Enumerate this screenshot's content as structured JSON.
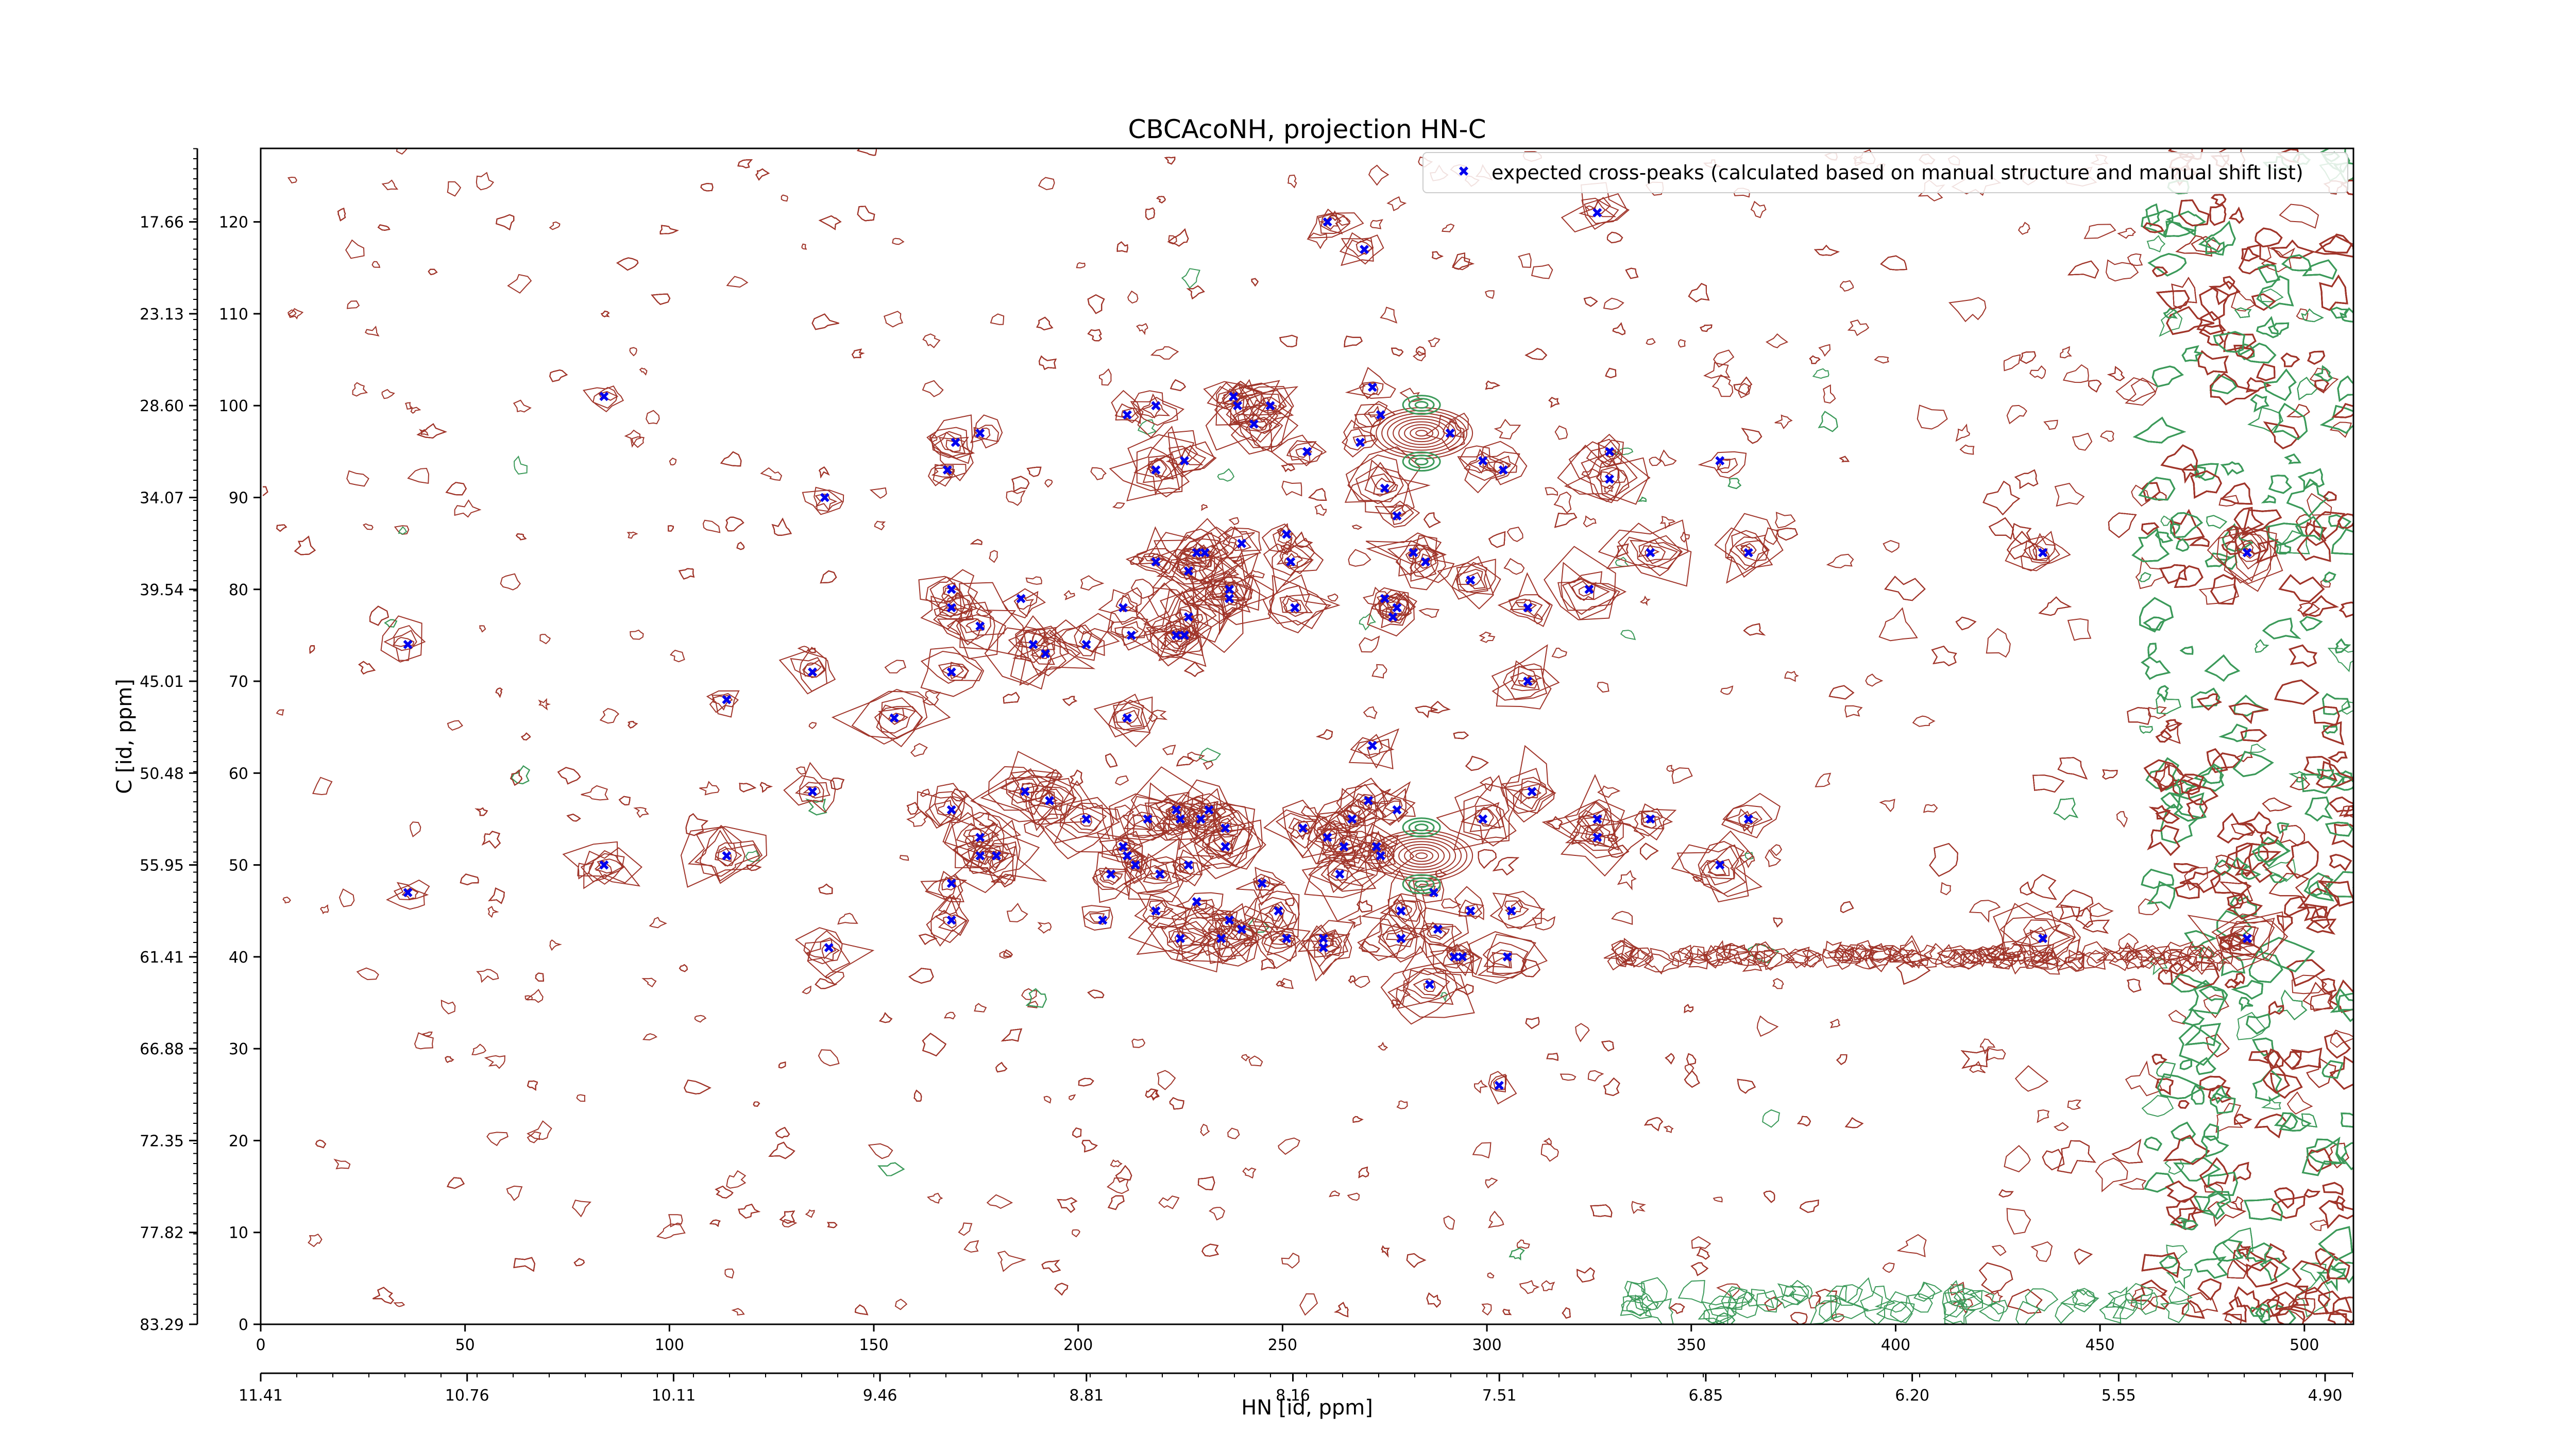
{
  "chart_data": {
    "type": "scatter",
    "title": "CBCAcoNH, projection HN-C",
    "xlabel": "HN [id, ppm]",
    "ylabel": "C [id, ppm]",
    "x_index_range": [
      0,
      512
    ],
    "y_index_range": [
      0,
      128
    ],
    "x_index_ticks": [
      "0",
      "50",
      "100",
      "150",
      "200",
      "250",
      "300",
      "350",
      "400",
      "450",
      "500"
    ],
    "x_ppm_ticks": [
      "11.41",
      "10.76",
      "10.11",
      "9.46",
      "8.81",
      "8.16",
      "7.51",
      "6.85",
      "6.20",
      "5.55",
      "4.90"
    ],
    "y_index_ticks": [
      "0",
      "10",
      "20",
      "30",
      "40",
      "50",
      "60",
      "70",
      "80",
      "90",
      "100",
      "110",
      "120"
    ],
    "y_ppm_ticks": [
      "83.29",
      "77.82",
      "72.35",
      "66.88",
      "61.41",
      "55.95",
      "50.48",
      "45.01",
      "39.54",
      "34.07",
      "28.60",
      "23.13",
      "17.66"
    ],
    "legend": {
      "placement": "top-right",
      "label": "expected cross-peaks (calculated based on manual structure and manual shift list)"
    },
    "colors": {
      "marker": "#0000ee",
      "contour_positive": "#a0352a",
      "contour_negative": "#3c9a5a"
    },
    "series": [
      {
        "name": "expected cross-peaks (calculated based on manual structure and manual shift list)",
        "points": [
          [
            36,
            74
          ],
          [
            36,
            47
          ],
          [
            84,
            101
          ],
          [
            84,
            50
          ],
          [
            114,
            68
          ],
          [
            114,
            51
          ],
          [
            138,
            90
          ],
          [
            135,
            71
          ],
          [
            135,
            58
          ],
          [
            139,
            41
          ],
          [
            155,
            66
          ],
          [
            168,
            93
          ],
          [
            170,
            96
          ],
          [
            176,
            97
          ],
          [
            169,
            80
          ],
          [
            169,
            78
          ],
          [
            169,
            71
          ],
          [
            169,
            56
          ],
          [
            169,
            48
          ],
          [
            169,
            44
          ],
          [
            176,
            76
          ],
          [
            176,
            53
          ],
          [
            176,
            51
          ],
          [
            180,
            51
          ],
          [
            186,
            79
          ],
          [
            187,
            58
          ],
          [
            189,
            74
          ],
          [
            192,
            73
          ],
          [
            193,
            57
          ],
          [
            202,
            74
          ],
          [
            202,
            55
          ],
          [
            206,
            44
          ],
          [
            208,
            49
          ],
          [
            211,
            78
          ],
          [
            211,
            52
          ],
          [
            212,
            51
          ],
          [
            212,
            66
          ],
          [
            212,
            99
          ],
          [
            219,
            100
          ],
          [
            219,
            93
          ],
          [
            213,
            75
          ],
          [
            214,
            50
          ],
          [
            217,
            55
          ],
          [
            219,
            45
          ],
          [
            219,
            83
          ],
          [
            220,
            49
          ],
          [
            224,
            75
          ],
          [
            224,
            56
          ],
          [
            226,
            94
          ],
          [
            226,
            75
          ],
          [
            227,
            82
          ],
          [
            227,
            77
          ],
          [
            225,
            55
          ],
          [
            225,
            42
          ],
          [
            227,
            50
          ],
          [
            229,
            46
          ],
          [
            229,
            84
          ],
          [
            230,
            55
          ],
          [
            231,
            84
          ],
          [
            232,
            56
          ],
          [
            235,
            42
          ],
          [
            236,
            54
          ],
          [
            236,
            52
          ],
          [
            237,
            79
          ],
          [
            237,
            44
          ],
          [
            237,
            80
          ],
          [
            238,
            101
          ],
          [
            239,
            100
          ],
          [
            240,
            43
          ],
          [
            240,
            85
          ],
          [
            243,
            98
          ],
          [
            245,
            48
          ],
          [
            247,
            100
          ],
          [
            249,
            45
          ],
          [
            251,
            86
          ],
          [
            251,
            42
          ],
          [
            252,
            83
          ],
          [
            253,
            78
          ],
          [
            255,
            54
          ],
          [
            256,
            95
          ],
          [
            260,
            42
          ],
          [
            260,
            41
          ],
          [
            261,
            53
          ],
          [
            261,
            120
          ],
          [
            264,
            49
          ],
          [
            265,
            52
          ],
          [
            267,
            55
          ],
          [
            269,
            96
          ],
          [
            270,
            117
          ],
          [
            271,
            57
          ],
          [
            272,
            102
          ],
          [
            272,
            63
          ],
          [
            273,
            52
          ],
          [
            274,
            51
          ],
          [
            274,
            99
          ],
          [
            275,
            79
          ],
          [
            275,
            91
          ],
          [
            277,
            77
          ],
          [
            278,
            56
          ],
          [
            278,
            88
          ],
          [
            278,
            78
          ],
          [
            279,
            42
          ],
          [
            279,
            45
          ],
          [
            282,
            84
          ],
          [
            285,
            83
          ],
          [
            286,
            37
          ],
          [
            287,
            47
          ],
          [
            288,
            43
          ],
          [
            291,
            97
          ],
          [
            292,
            40
          ],
          [
            294,
            40
          ],
          [
            296,
            81
          ],
          [
            296,
            45
          ],
          [
            299,
            94
          ],
          [
            299,
            55
          ],
          [
            304,
            93
          ],
          [
            303,
            26
          ],
          [
            305,
            40
          ],
          [
            306,
            45
          ],
          [
            310,
            78
          ],
          [
            310,
            70
          ],
          [
            311,
            58
          ],
          [
            325,
            80
          ],
          [
            327,
            121
          ],
          [
            327,
            55
          ],
          [
            327,
            53
          ],
          [
            330,
            92
          ],
          [
            330,
            95
          ],
          [
            340,
            84
          ],
          [
            340,
            55
          ],
          [
            357,
            94
          ],
          [
            357,
            50
          ],
          [
            364,
            84
          ],
          [
            364,
            55
          ],
          [
            436,
            84
          ],
          [
            436,
            42
          ],
          [
            486,
            84
          ],
          [
            486,
            42
          ]
        ]
      }
    ]
  }
}
